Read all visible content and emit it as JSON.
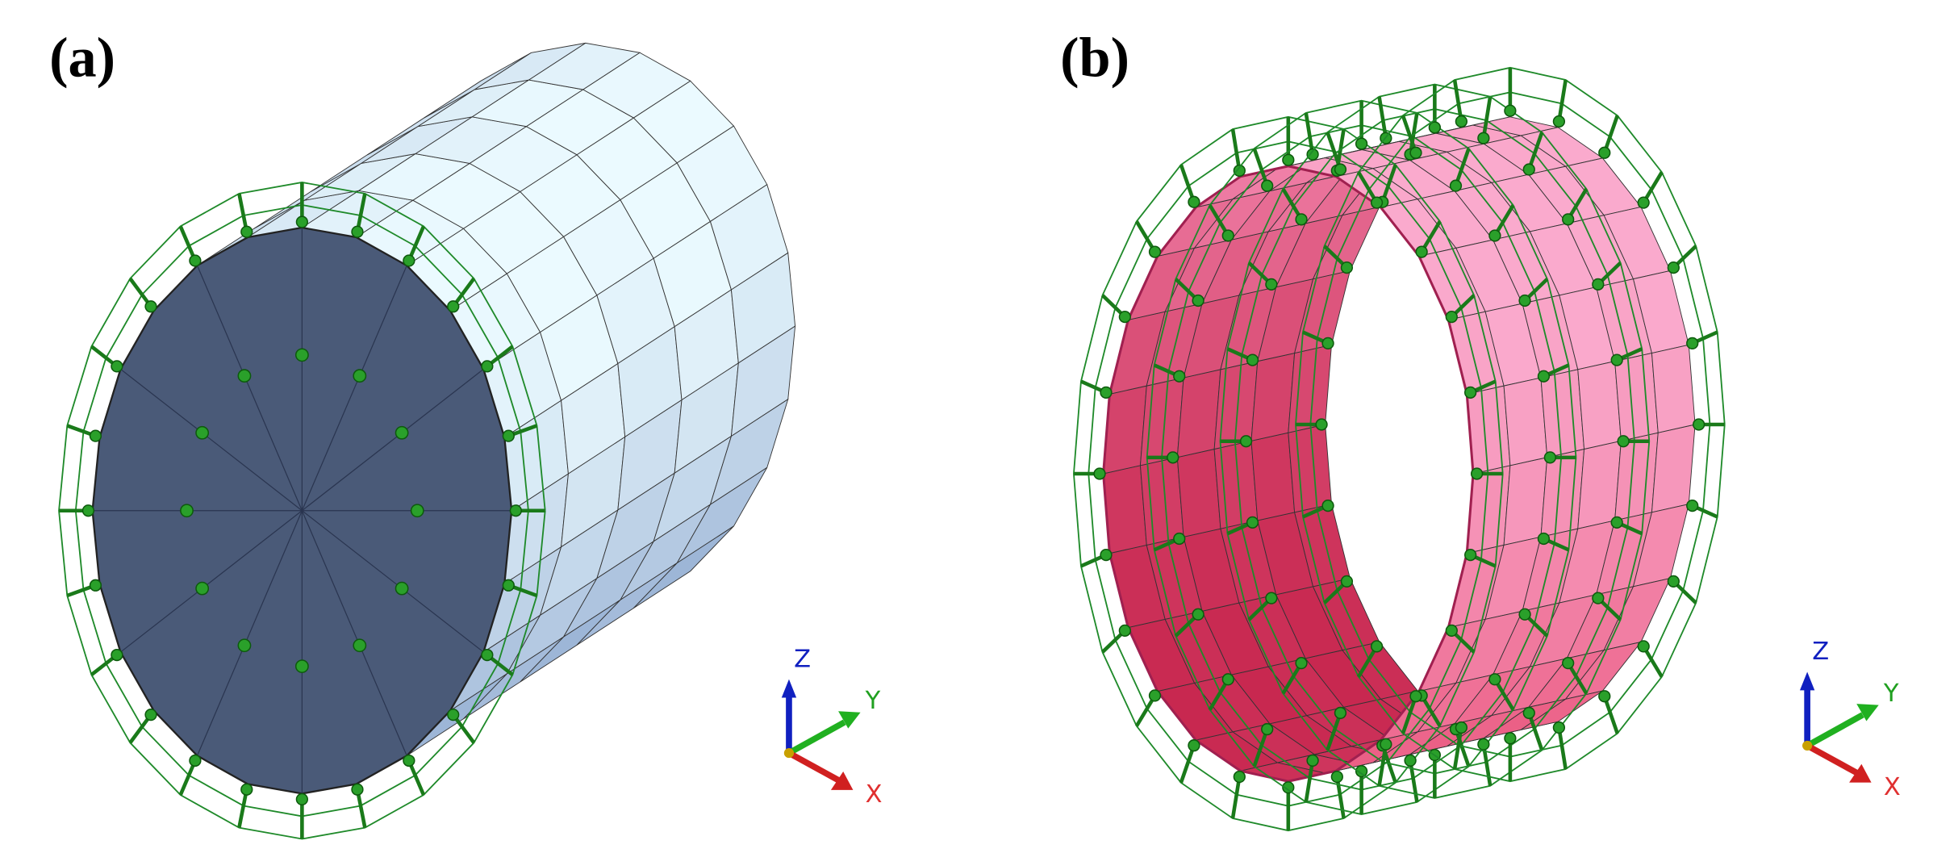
{
  "panels": [
    {
      "label": "(a)",
      "triad": {
        "z": "Z",
        "y": "Y",
        "x": "X"
      }
    },
    {
      "label": "(b)",
      "triad": {
        "z": "Z",
        "y": "Y",
        "x": "X"
      }
    }
  ]
}
